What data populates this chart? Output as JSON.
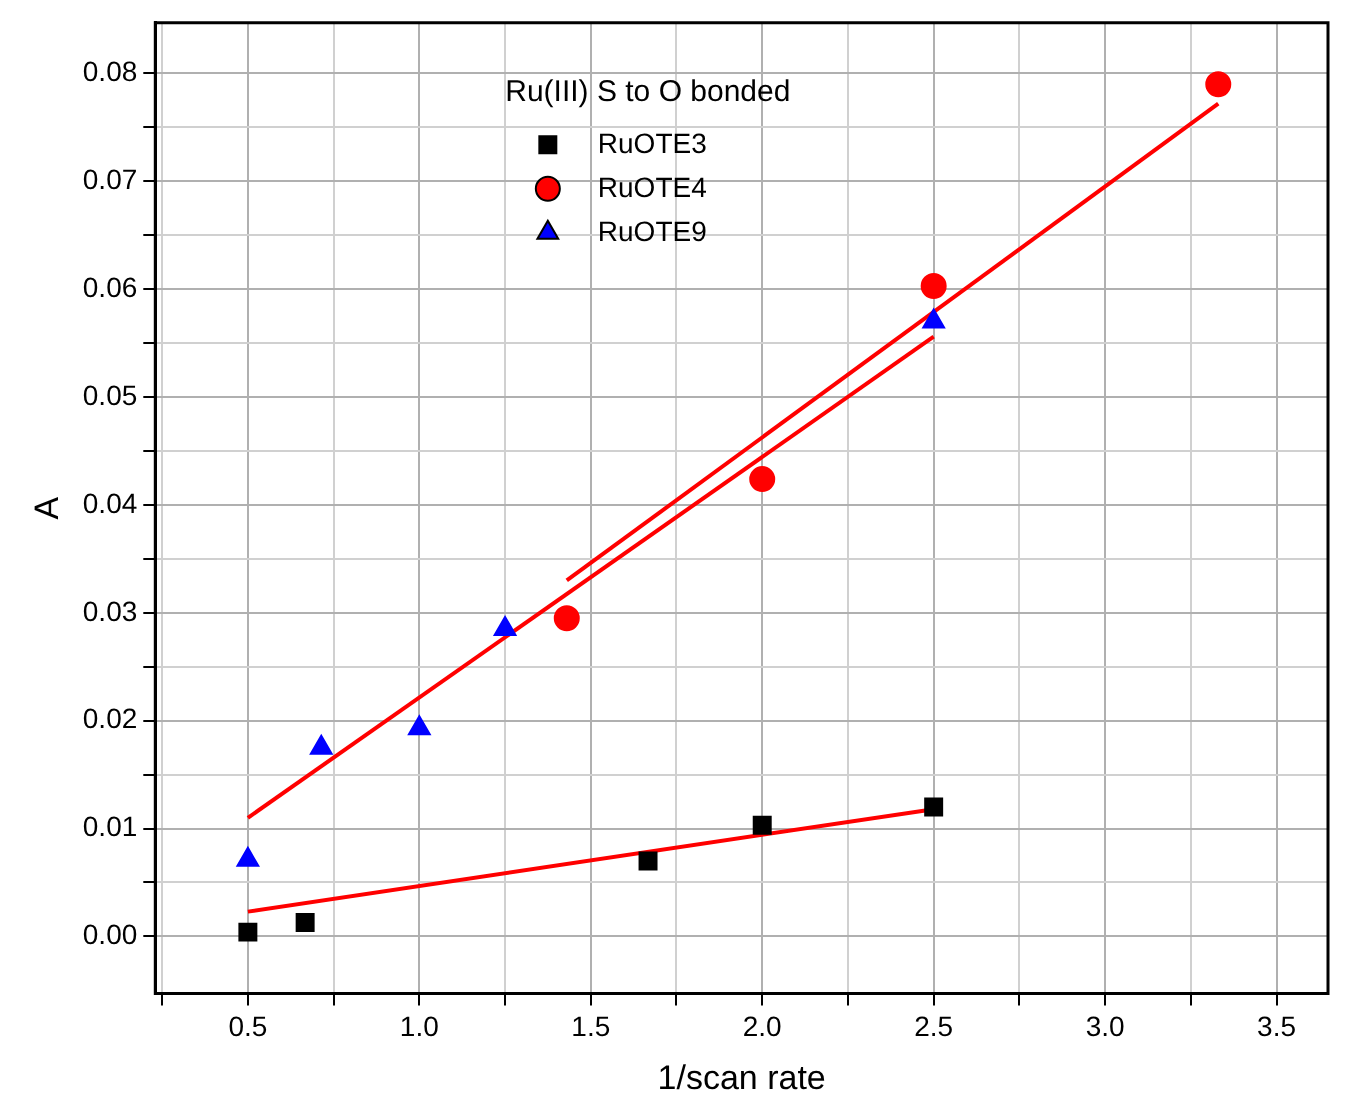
{
  "chart_data": {
    "type": "scatter",
    "xlabel": "1/scan rate",
    "ylabel": "A",
    "legend_title": "Ru(III) S to O bonded",
    "legend": "top",
    "grid": true,
    "xlim": [
      0.23,
      3.65
    ],
    "xticks": [
      {
        "value": 0.25,
        "label": null
      },
      0.5,
      {
        "value": 0.75,
        "label": null
      },
      "1.0",
      {
        "value": 1.25,
        "label": null
      },
      1.5,
      {
        "value": 1.75,
        "label": null
      },
      "2.0",
      {
        "value": 2.25,
        "label": null
      },
      2.5,
      {
        "value": 2.75,
        "label": null
      },
      "3.0",
      {
        "value": 3.25,
        "label": null
      },
      3.5
    ],
    "ylim": [
      -0.0053,
      0.0847
    ],
    "yticks": [
      {
        "value": 0,
        "label": "0.00"
      },
      {
        "value": 0.005,
        "label": null
      },
      {
        "value": 0.01,
        "label": "0.01"
      },
      {
        "value": 0.015,
        "label": null
      },
      {
        "value": 0.02,
        "label": "0.02"
      },
      {
        "value": 0.025,
        "label": null
      },
      {
        "value": 0.03,
        "label": "0.03"
      },
      {
        "value": 0.035,
        "label": null
      },
      {
        "value": 0.04,
        "label": "0.04"
      },
      {
        "value": 0.045,
        "label": null
      },
      {
        "value": 0.05,
        "label": "0.05"
      },
      {
        "value": 0.055,
        "label": null
      },
      {
        "value": 0.06,
        "label": "0.06"
      },
      {
        "value": 0.065,
        "label": null
      },
      {
        "value": 0.07,
        "label": "0.07"
      },
      {
        "value": 0.075,
        "label": null
      },
      {
        "value": 0.08,
        "label": "0.08"
      }
    ],
    "series": [
      {
        "name": "RuOTE3",
        "marker": "square",
        "color": "#000000",
        "x": [
          0.5,
          0.667,
          1.667,
          2.0,
          2.5
        ],
        "values": [
          0.0004,
          0.0013,
          0.007,
          0.0103,
          0.012
        ]
      },
      {
        "name": "RuOTE4",
        "marker": "circle",
        "color": "#ff0000",
        "x": [
          1.43,
          2.0,
          2.5,
          3.33
        ],
        "values": [
          0.0295,
          0.0424,
          0.0603,
          0.079
        ]
      },
      {
        "name": "RuOTE9",
        "marker": "triangle",
        "color": "#0000ff",
        "x": [
          0.5,
          0.714,
          1.0,
          1.25,
          2.5
        ],
        "values": [
          0.0071,
          0.0175,
          0.0193,
          0.0285,
          0.057
        ]
      },
      {
        "type": "line",
        "marker": "none",
        "color": "#ff0000",
        "x": [
          0.5,
          2.5
        ],
        "values": [
          0.0023,
          0.0118
        ]
      },
      {
        "type": "line",
        "marker": "none",
        "color": "#ff0000",
        "x": [
          1.43,
          3.33
        ],
        "values": [
          0.033,
          0.0772
        ]
      },
      {
        "type": "line",
        "marker": "none",
        "color": "#ff0000",
        "x": [
          0.5,
          2.5
        ],
        "values": [
          0.011,
          0.0556
        ]
      }
    ]
  }
}
